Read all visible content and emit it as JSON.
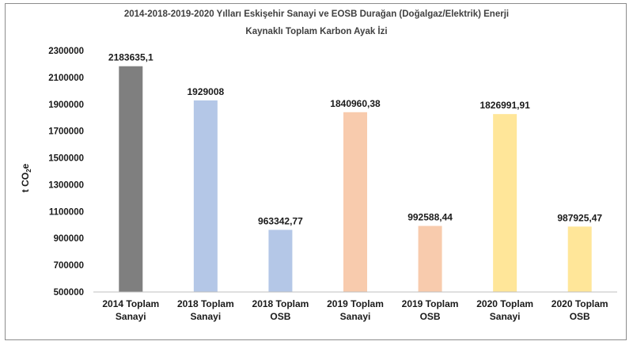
{
  "chart_data": {
    "type": "bar",
    "title_lines": [
      "2014-2018-2019-2020 Yılları Eskişehir Sanayi ve EOSB Durağan (Doğalgaz/Elektrik) Enerji",
      "Kaynaklı Toplam Karbon Ayak İzi"
    ],
    "ylabel": "t CO",
    "ylabel_sub": "2",
    "ylabel_suffix": "e",
    "ylim": [
      500000,
      2300000
    ],
    "yticks": [
      "500000",
      "700000",
      "900000",
      "1100000",
      "1300000",
      "1500000",
      "1700000",
      "1900000",
      "2100000",
      "2300000"
    ],
    "ytick_values": [
      500000,
      700000,
      900000,
      1100000,
      1300000,
      1500000,
      1700000,
      1900000,
      2100000,
      2300000
    ],
    "categories": [
      [
        "2014 Toplam",
        "Sanayi"
      ],
      [
        "2018 Toplam",
        "Sanayi"
      ],
      [
        "2018 Toplam",
        "OSB"
      ],
      [
        "2019 Toplam",
        "Sanayi"
      ],
      [
        "2019 Toplam",
        "OSB"
      ],
      [
        "2020 Toplam",
        "Sanayi"
      ],
      [
        "2020 Toplam",
        "OSB"
      ]
    ],
    "values": [
      2183635.1,
      1929008,
      963342.77,
      1840960.38,
      992588.44,
      1826991.91,
      987925.47
    ],
    "value_labels": [
      "2183635,1",
      "1929008",
      "963342,77",
      "1840960,38",
      "992588,44",
      "1826991,91",
      "987925,47"
    ],
    "colors": [
      "#7f7f7f",
      "#b4c7e7",
      "#b4c7e7",
      "#f8cbad",
      "#f8cbad",
      "#ffe699",
      "#ffe699"
    ],
    "grid": false,
    "legend": "none"
  }
}
